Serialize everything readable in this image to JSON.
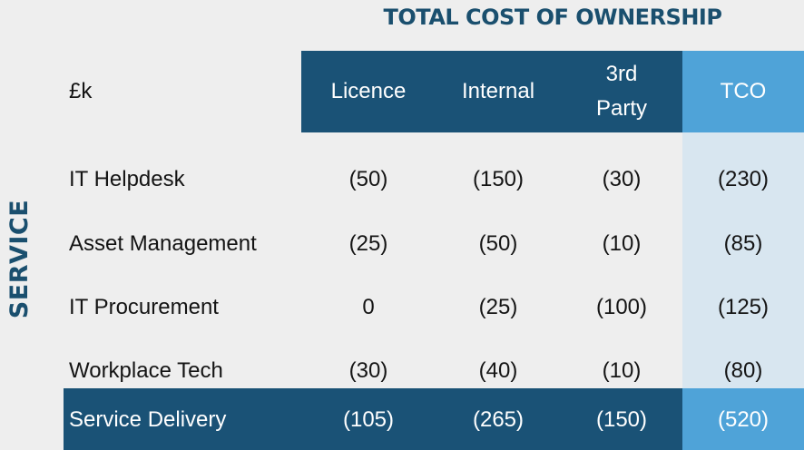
{
  "title": "TOTAL COST OF OWNERSHIP",
  "side_label": "SERVICE",
  "unit_label": "£k",
  "columns": [
    "Licence",
    "Internal",
    "3rd\nParty",
    "TCO"
  ],
  "rows": [
    {
      "label": "IT Helpdesk",
      "values": [
        "(50)",
        "(150)",
        "(30)",
        "(230)"
      ]
    },
    {
      "label": "Asset Management",
      "values": [
        "(25)",
        "(50)",
        "(10)",
        "(85)"
      ]
    },
    {
      "label": "IT Procurement",
      "values": [
        "0",
        "(25)",
        "(100)",
        "(125)"
      ]
    },
    {
      "label": "Workplace Tech",
      "values": [
        "(30)",
        "(40)",
        "(10)",
        "(80)"
      ]
    }
  ],
  "total": {
    "label": "Service Delivery",
    "values": [
      "(105)",
      "(265)",
      "(150)",
      "(520)"
    ]
  },
  "colors": {
    "header_dark": "#1a5276",
    "header_tco": "#4fa3d8",
    "tco_column": "#d8e6f0",
    "title": "#1a4f6e"
  }
}
